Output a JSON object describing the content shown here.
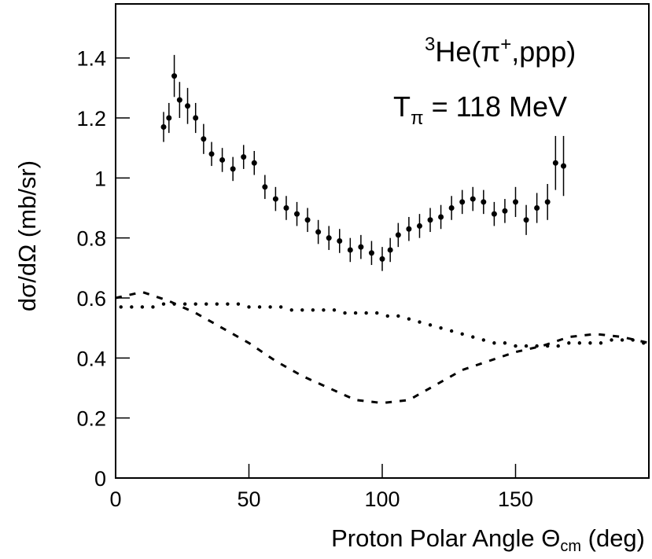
{
  "chart_data": {
    "type": "scatter",
    "annotations": [
      {
        "parts": [
          "3",
          "He(π",
          "+",
          ",ppp)"
        ]
      },
      {
        "parts": [
          "T",
          "π",
          " = 118 MeV"
        ]
      }
    ],
    "xlabel": {
      "parts": [
        "Proton Polar Angle Θ",
        "cm",
        " (deg)"
      ]
    },
    "ylabel": "dσ/dΩ  (mb/sr)",
    "xlim": [
      0,
      200
    ],
    "ylim": [
      0,
      1.58
    ],
    "xticks": [
      0,
      50,
      100,
      150
    ],
    "yticks": [
      0,
      0.2,
      0.4,
      0.6,
      0.8,
      1,
      1.2,
      1.4
    ],
    "series": [
      {
        "name": null,
        "style": "points",
        "color": "#000",
        "x": [
          18,
          20,
          22,
          24,
          27,
          30,
          33,
          36,
          40,
          44,
          48,
          52,
          56,
          60,
          64,
          68,
          72,
          76,
          80,
          84,
          88,
          92,
          96,
          100,
          103,
          106,
          110,
          114,
          118,
          122,
          126,
          130,
          134,
          138,
          142,
          146,
          150,
          154,
          158,
          162,
          165,
          168
        ],
        "values": [
          1.17,
          1.2,
          1.34,
          1.26,
          1.24,
          1.2,
          1.13,
          1.08,
          1.06,
          1.03,
          1.07,
          1.05,
          0.97,
          0.93,
          0.9,
          0.88,
          0.86,
          0.82,
          0.8,
          0.79,
          0.76,
          0.77,
          0.75,
          0.73,
          0.76,
          0.81,
          0.83,
          0.84,
          0.86,
          0.87,
          0.9,
          0.92,
          0.93,
          0.92,
          0.88,
          0.89,
          0.92,
          0.86,
          0.9,
          0.92,
          1.05,
          1.04
        ],
        "errors": [
          0.05,
          0.05,
          0.07,
          0.06,
          0.06,
          0.05,
          0.05,
          0.04,
          0.04,
          0.04,
          0.04,
          0.04,
          0.04,
          0.04,
          0.04,
          0.04,
          0.04,
          0.04,
          0.04,
          0.04,
          0.04,
          0.04,
          0.04,
          0.04,
          0.04,
          0.04,
          0.04,
          0.04,
          0.04,
          0.04,
          0.04,
          0.04,
          0.04,
          0.04,
          0.04,
          0.04,
          0.05,
          0.05,
          0.05,
          0.06,
          0.09,
          0.1
        ]
      },
      {
        "name": null,
        "style": "dots",
        "color": "#000",
        "x": [
          2,
          6,
          10,
          14,
          18,
          22,
          26,
          30,
          34,
          38,
          42,
          46,
          50,
          54,
          58,
          62,
          66,
          70,
          74,
          78,
          82,
          86,
          90,
          94,
          98,
          102,
          106,
          110,
          114,
          118,
          122,
          126,
          130,
          134,
          138,
          142,
          146,
          150,
          154,
          158,
          162,
          166,
          170,
          174,
          178,
          182,
          186,
          190,
          194,
          198
        ],
        "values": [
          0.57,
          0.57,
          0.57,
          0.57,
          0.58,
          0.58,
          0.58,
          0.58,
          0.58,
          0.58,
          0.58,
          0.58,
          0.57,
          0.57,
          0.57,
          0.57,
          0.56,
          0.56,
          0.56,
          0.56,
          0.56,
          0.55,
          0.55,
          0.55,
          0.55,
          0.54,
          0.54,
          0.53,
          0.52,
          0.51,
          0.5,
          0.49,
          0.48,
          0.47,
          0.46,
          0.45,
          0.45,
          0.44,
          0.44,
          0.44,
          0.44,
          0.44,
          0.45,
          0.45,
          0.45,
          0.45,
          0.46,
          0.46,
          0.46,
          0.45
        ]
      },
      {
        "name": null,
        "style": "dashed-steps",
        "color": "#000",
        "x": [
          0,
          10,
          20,
          30,
          40,
          50,
          60,
          70,
          80,
          90,
          100,
          110,
          120,
          130,
          140,
          150,
          160,
          170,
          180,
          190,
          200
        ],
        "values": [
          0.6,
          0.62,
          0.59,
          0.55,
          0.5,
          0.45,
          0.39,
          0.34,
          0.3,
          0.26,
          0.25,
          0.26,
          0.31,
          0.36,
          0.39,
          0.42,
          0.44,
          0.47,
          0.48,
          0.47,
          0.45
        ]
      }
    ]
  }
}
